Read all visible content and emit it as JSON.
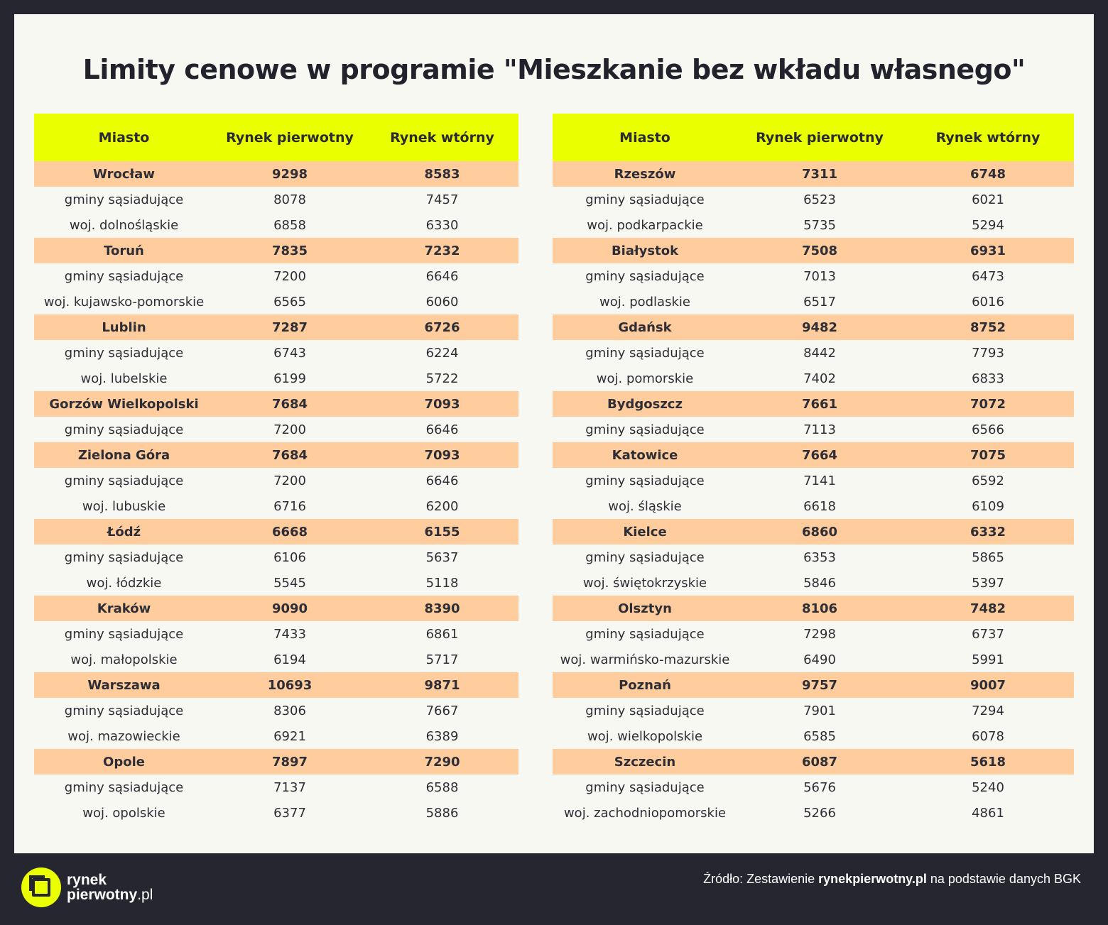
{
  "title": "Limity cenowe w programie \"Mieszkanie bez wkładu własnego\"",
  "headers": {
    "city": "Miasto",
    "primary": "Rynek pierwotny",
    "secondary": "Rynek wtórny"
  },
  "left_table": [
    {
      "type": "city",
      "name": "Wrocław",
      "primary": "9298",
      "secondary": "8583"
    },
    {
      "type": "sub",
      "name": "gminy sąsiadujące",
      "primary": "8078",
      "secondary": "7457"
    },
    {
      "type": "sub",
      "name": "woj. dolnośląskie",
      "primary": "6858",
      "secondary": "6330"
    },
    {
      "type": "city",
      "name": "Toruń",
      "primary": "7835",
      "secondary": "7232"
    },
    {
      "type": "sub",
      "name": "gminy sąsiadujące",
      "primary": "7200",
      "secondary": "6646"
    },
    {
      "type": "sub",
      "name": "woj. kujawsko-pomorskie",
      "primary": "6565",
      "secondary": "6060"
    },
    {
      "type": "city",
      "name": "Lublin",
      "primary": "7287",
      "secondary": "6726"
    },
    {
      "type": "sub",
      "name": "gminy sąsiadujące",
      "primary": "6743",
      "secondary": "6224"
    },
    {
      "type": "sub",
      "name": "woj. lubelskie",
      "primary": "6199",
      "secondary": "5722"
    },
    {
      "type": "city",
      "name": "Gorzów Wielkopolski",
      "primary": "7684",
      "secondary": "7093"
    },
    {
      "type": "sub",
      "name": "gminy sąsiadujące",
      "primary": "7200",
      "secondary": "6646"
    },
    {
      "type": "city",
      "name": "Zielona Góra",
      "primary": "7684",
      "secondary": "7093"
    },
    {
      "type": "sub",
      "name": "gminy sąsiadujące",
      "primary": "7200",
      "secondary": "6646"
    },
    {
      "type": "sub",
      "name": "woj. lubuskie",
      "primary": "6716",
      "secondary": "6200"
    },
    {
      "type": "city",
      "name": "Łódź",
      "primary": "6668",
      "secondary": "6155"
    },
    {
      "type": "sub",
      "name": "gminy sąsiadujące",
      "primary": "6106",
      "secondary": "5637"
    },
    {
      "type": "sub",
      "name": "woj. łódzkie",
      "primary": "5545",
      "secondary": "5118"
    },
    {
      "type": "city",
      "name": "Kraków",
      "primary": "9090",
      "secondary": "8390"
    },
    {
      "type": "sub",
      "name": "gminy sąsiadujące",
      "primary": "7433",
      "secondary": "6861"
    },
    {
      "type": "sub",
      "name": "woj. małopolskie",
      "primary": "6194",
      "secondary": "5717"
    },
    {
      "type": "city",
      "name": "Warszawa",
      "primary": "10693",
      "secondary": "9871"
    },
    {
      "type": "sub",
      "name": "gminy sąsiadujące",
      "primary": "8306",
      "secondary": "7667"
    },
    {
      "type": "sub",
      "name": "woj. mazowieckie",
      "primary": "6921",
      "secondary": "6389"
    },
    {
      "type": "city",
      "name": "Opole",
      "primary": "7897",
      "secondary": "7290"
    },
    {
      "type": "sub",
      "name": "gminy sąsiadujące",
      "primary": "7137",
      "secondary": "6588"
    },
    {
      "type": "sub",
      "name": "woj. opolskie",
      "primary": "6377",
      "secondary": "5886"
    }
  ],
  "right_table": [
    {
      "type": "city",
      "name": "Rzeszów",
      "primary": "7311",
      "secondary": "6748"
    },
    {
      "type": "sub",
      "name": "gminy sąsiadujące",
      "primary": "6523",
      "secondary": "6021"
    },
    {
      "type": "sub",
      "name": "woj. podkarpackie",
      "primary": "5735",
      "secondary": "5294"
    },
    {
      "type": "city",
      "name": "Białystok",
      "primary": "7508",
      "secondary": "6931"
    },
    {
      "type": "sub",
      "name": "gminy sąsiadujące",
      "primary": "7013",
      "secondary": "6473"
    },
    {
      "type": "sub",
      "name": "woj. podlaskie",
      "primary": "6517",
      "secondary": "6016"
    },
    {
      "type": "city",
      "name": "Gdańsk",
      "primary": "9482",
      "secondary": "8752"
    },
    {
      "type": "sub",
      "name": "gminy sąsiadujące",
      "primary": "8442",
      "secondary": "7793"
    },
    {
      "type": "sub",
      "name": "woj. pomorskie",
      "primary": "7402",
      "secondary": "6833"
    },
    {
      "type": "city",
      "name": "Bydgoszcz",
      "primary": "7661",
      "secondary": "7072"
    },
    {
      "type": "sub",
      "name": "gminy sąsiadujące",
      "primary": "7113",
      "secondary": "6566"
    },
    {
      "type": "city",
      "name": "Katowice",
      "primary": "7664",
      "secondary": "7075"
    },
    {
      "type": "sub",
      "name": "gminy sąsiadujące",
      "primary": "7141",
      "secondary": "6592"
    },
    {
      "type": "sub",
      "name": "woj. śląskie",
      "primary": "6618",
      "secondary": "6109"
    },
    {
      "type": "city",
      "name": "Kielce",
      "primary": "6860",
      "secondary": "6332"
    },
    {
      "type": "sub",
      "name": "gminy sąsiadujące",
      "primary": "6353",
      "secondary": "5865"
    },
    {
      "type": "sub",
      "name": "woj. świętokrzyskie",
      "primary": "5846",
      "secondary": "5397"
    },
    {
      "type": "city",
      "name": "Olsztyn",
      "primary": "8106",
      "secondary": "7482"
    },
    {
      "type": "sub",
      "name": "gminy sąsiadujące",
      "primary": "7298",
      "secondary": "6737"
    },
    {
      "type": "sub",
      "name": "woj. warmińsko-mazurskie",
      "primary": "6490",
      "secondary": "5991"
    },
    {
      "type": "city",
      "name": "Poznań",
      "primary": "9757",
      "secondary": "9007"
    },
    {
      "type": "sub",
      "name": "gminy sąsiadujące",
      "primary": "7901",
      "secondary": "7294"
    },
    {
      "type": "sub",
      "name": "woj. wielkopolskie",
      "primary": "6585",
      "secondary": "6078"
    },
    {
      "type": "city",
      "name": "Szczecin",
      "primary": "6087",
      "secondary": "5618"
    },
    {
      "type": "sub",
      "name": "gminy sąsiadujące",
      "primary": "5676",
      "secondary": "5240"
    },
    {
      "type": "sub",
      "name": "woj. zachodniopomorskie",
      "primary": "5266",
      "secondary": "4861"
    }
  ],
  "footer": {
    "logo_line1": "rynek",
    "logo_line2_bold": "pierwotny",
    "logo_line2_rest": ".pl",
    "source_prefix": "Źródło: Zestawienie ",
    "source_bold": "rynekpierwotny.pl",
    "source_suffix": " na podstawie danych BGK"
  },
  "colors": {
    "background": "#262630",
    "panel": "#f8f8f3",
    "header": "#eaff00",
    "city_row": "#ffcc9e"
  }
}
